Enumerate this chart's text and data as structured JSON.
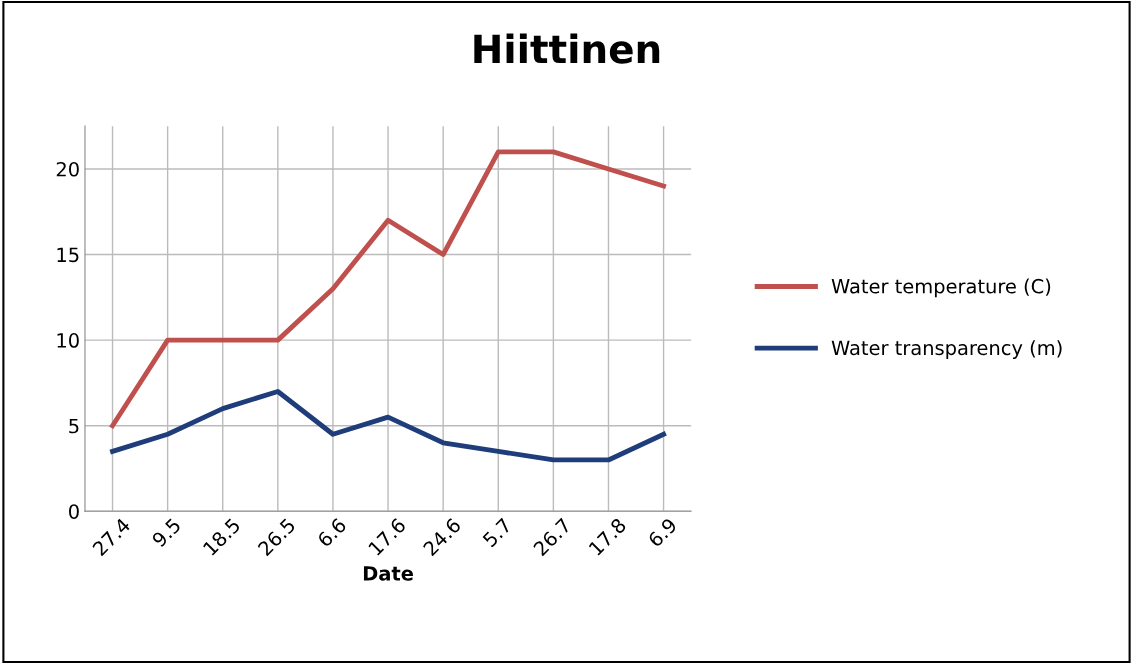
{
  "chart_data": {
    "type": "line",
    "title": "Hiittinen",
    "xlabel": "Date",
    "categories": [
      "27.4",
      "9.5",
      "18.5",
      "26.5",
      "6.6",
      "17.6",
      "24.6",
      "5.7",
      "26.7",
      "17.8",
      "6.9"
    ],
    "series": [
      {
        "name": "Water temperature (C)",
        "color": "#c0504d",
        "values": [
          5,
          10,
          10,
          10,
          13,
          17,
          15,
          21,
          21,
          20,
          19
        ]
      },
      {
        "name": "Water transparency (m)",
        "color": "#1f3d7a",
        "values": [
          3.5,
          4.5,
          6,
          7,
          4.5,
          5.5,
          4,
          3.5,
          3,
          3,
          4.5
        ]
      }
    ],
    "ylim": [
      0,
      22.5
    ],
    "yticks": [
      0,
      5,
      10,
      15,
      20
    ],
    "grid": true,
    "legend": "right",
    "marker": "none",
    "line_style": "solid"
  }
}
